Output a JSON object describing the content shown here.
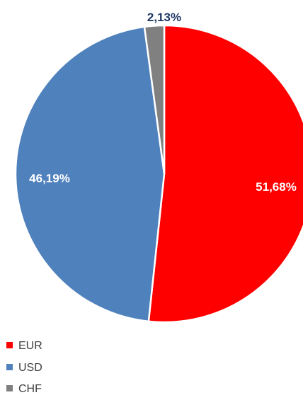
{
  "chart_data": {
    "type": "pie",
    "slices": [
      {
        "label": "EUR",
        "value": 51.68,
        "display": "51,68%",
        "color": "#ff0000",
        "label_color": "#ffffff"
      },
      {
        "label": "USD",
        "value": 46.19,
        "display": "46,19%",
        "color": "#4f81bd",
        "label_color": "#ffffff"
      },
      {
        "label": "CHF",
        "value": 2.13,
        "display": "2,13%",
        "color": "#808080",
        "label_color": "#1f3864"
      }
    ],
    "start_angle_deg": 0,
    "direction": "clockwise",
    "legend": {
      "position": "bottom-left",
      "entries": [
        "EUR",
        "USD",
        "CHF"
      ]
    },
    "title": ""
  }
}
